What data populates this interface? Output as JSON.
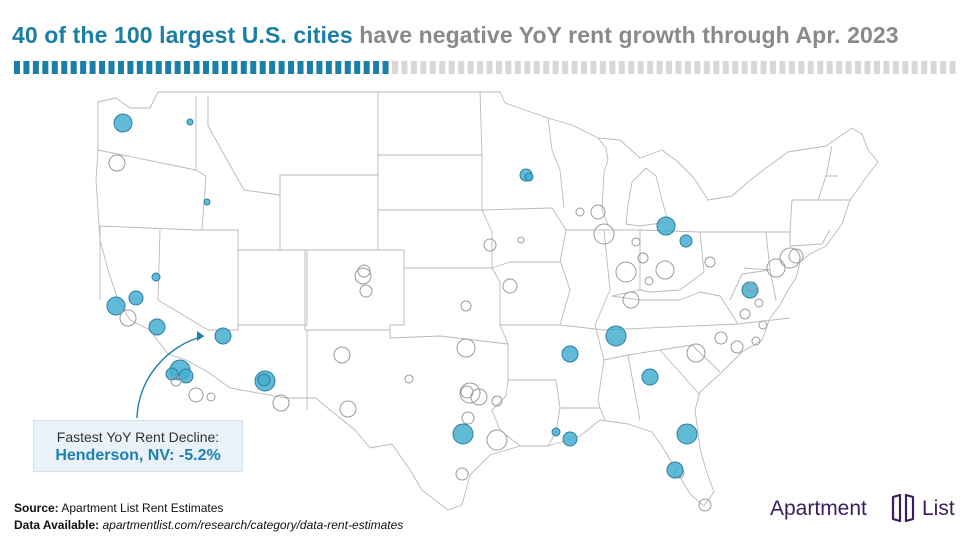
{
  "title": {
    "highlight": "40 of the 100 largest U.S. cities",
    "rest": "have negative YoY rent growth through Apr. 2023"
  },
  "progress": {
    "negative": 40,
    "total": 100,
    "negative_color": "#1a7ea6",
    "other_color": "#d8d8d8"
  },
  "callout": {
    "label": "Fastest YoY Rent Decline:",
    "value": "Henderson, NV: -5.2%"
  },
  "footer": {
    "source_label": "Source:",
    "source_value": "Apartment List Rent Estimates",
    "available_label": "Data Available:",
    "available_value": "apartmentlist.com/research/category/data-rent-estimates"
  },
  "logo": {
    "word1": "Apartment",
    "word2": "List"
  },
  "colors": {
    "negative_fill": "#45aed0",
    "negative_stroke": "#2c7fa2",
    "positive_stroke": "#9a9a9a",
    "state_border": "#b9b9b9",
    "brand": "#3a1d5c"
  }
}
